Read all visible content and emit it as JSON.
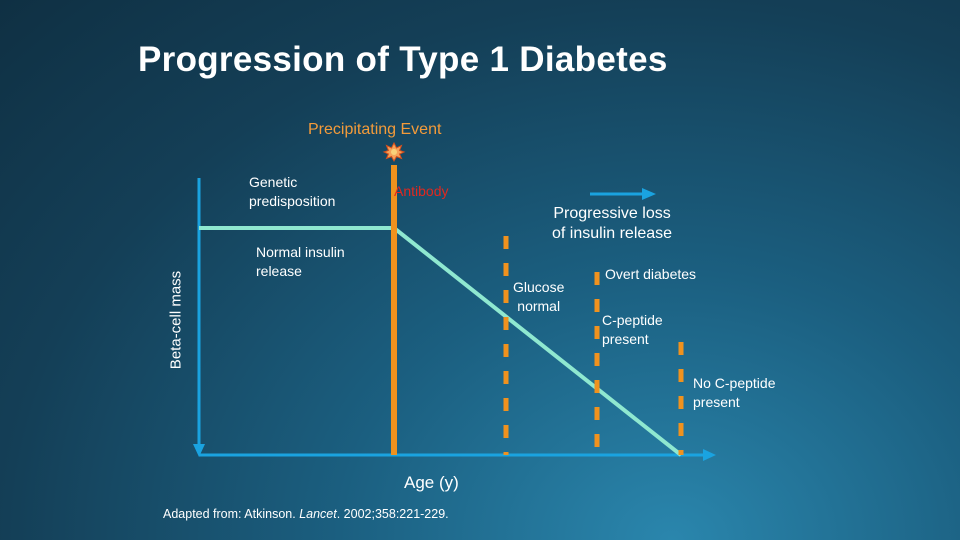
{
  "title": "Progression of Type 1 Diabetes",
  "precipitating_event": "Precipitating Event",
  "labels": {
    "genetic": "Genetic\npredisposition",
    "antibody": "Antibody",
    "progressive_loss": "Progressive loss\nof insulin release",
    "normal_insulin": "Normal insulin\nrelease",
    "glucose_normal": "Glucose\nnormal",
    "overt_diabetes": "Overt diabetes",
    "c_peptide": "C-peptide\npresent",
    "no_c_peptide": "No C-peptide\npresent"
  },
  "axes": {
    "y_label": "Beta-cell mass",
    "x_label": "Age (y)"
  },
  "source": {
    "prefix": "Adapted from: Atkinson. ",
    "journal": "Lancet",
    "suffix": ". 2002;358:221-229."
  },
  "colors": {
    "axis": "#1aa3e0",
    "curve": "#8fe8d0",
    "marker": "#f0921e",
    "antibody": "#e0281f",
    "burst": "#f6a35a"
  },
  "icons": {
    "event": "starburst-icon"
  }
}
